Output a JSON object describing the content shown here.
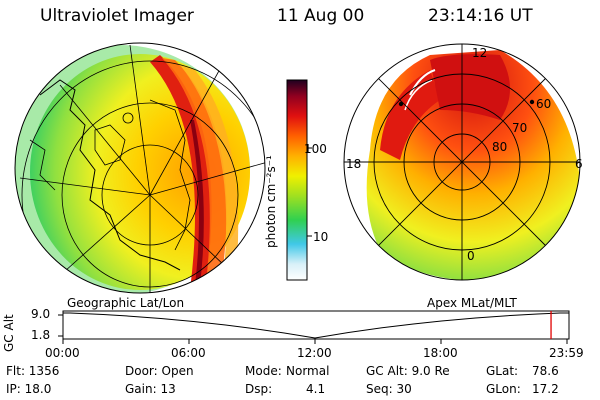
{
  "header": {
    "title": "Ultraviolet Imager",
    "date": "11 Aug 00",
    "time": "23:14:16 UT"
  },
  "colorbar": {
    "label": "photon cm⁻²s⁻¹",
    "ticks": [
      "100",
      "10"
    ]
  },
  "left_panel": {
    "caption": "Geographic Lat/Lon"
  },
  "right_panel": {
    "caption": "Apex MLat/MLT",
    "mlt_labels": [
      "12",
      "18",
      "6",
      "0"
    ],
    "lat_labels": [
      "60",
      "70",
      "80"
    ]
  },
  "timeline": {
    "ylabel": "GC Alt",
    "y_ticks": [
      "9.0",
      "1.8"
    ],
    "x_ticks": [
      "00:00",
      "06:00",
      "12:00",
      "18:00",
      "23:59"
    ],
    "current_marker_hours": 23.24
  },
  "info": {
    "flt": "Flt: 1356",
    "door": "Door: Open",
    "mode_label": "Mode:",
    "mode_value": "Normal",
    "gc_alt": "GC Alt: 9.0 Re",
    "glat_label": "GLat:",
    "glat_value": "78.6",
    "ip": "IP: 18.0",
    "gain": "Gain: 13",
    "dsp_label": "Dsp:",
    "dsp_value": "4.1",
    "seq": "Seq: 30",
    "glon_label": "GLon:",
    "glon_value": "17.2"
  }
}
